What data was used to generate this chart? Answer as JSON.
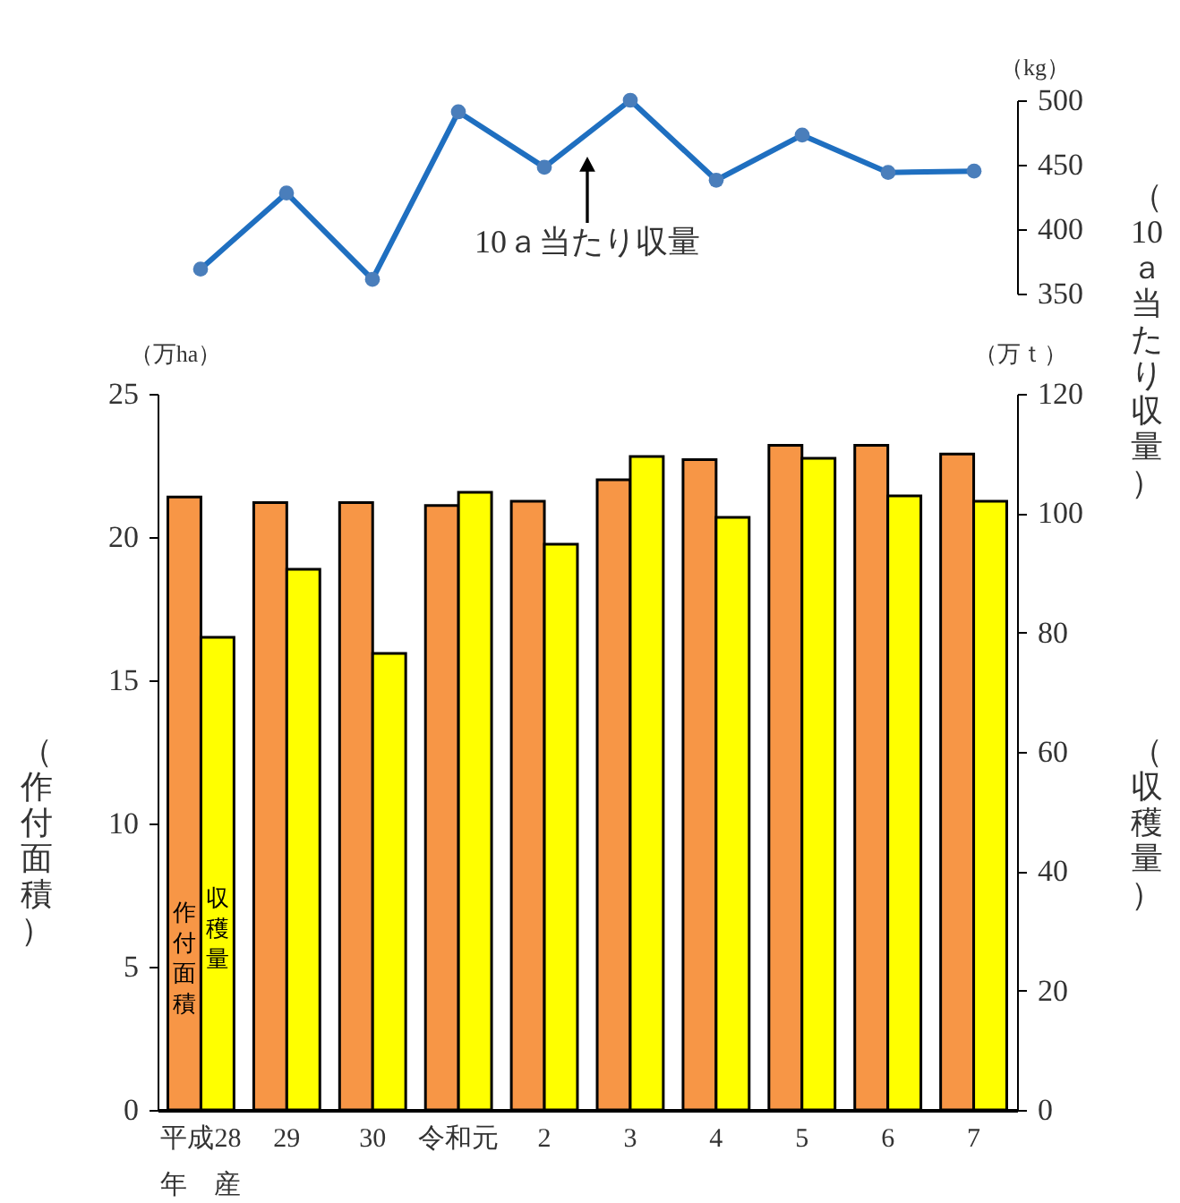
{
  "chart_data": [
    {
      "type": "line",
      "categories": [
        null,
        null,
        null,
        null,
        null,
        null,
        null,
        null,
        null,
        null
      ],
      "values": [
        369,
        428,
        361,
        491,
        448,
        500,
        438,
        473,
        444,
        445
      ],
      "color": "#1f6fc0",
      "marker": "circle",
      "ylim": [
        350,
        500
      ],
      "yticks": [
        350,
        400,
        450,
        500
      ],
      "ylabel": "（10ａ当たり収量）",
      "tick_labels": "y",
      "annotations": [
        "（kg）",
        "10ａ当たり収量"
      ]
    },
    {
      "type": "bar",
      "categories": [
        "平成28\n年　産",
        "29",
        "30",
        "令和元",
        "2",
        "3",
        "4",
        "5",
        "6",
        "7"
      ],
      "series": [
        {
          "name": "作付面積",
          "color": "#f79646",
          "values": [
            21.4,
            21.2,
            21.2,
            21.1,
            21.25,
            22.0,
            22.7,
            23.2,
            23.2,
            22.9
          ]
        },
        {
          "name": "収穫量",
          "color": "#ffff00",
          "axis": "y2",
          "values": [
            79.2,
            90.6,
            76.5,
            103.5,
            94.8,
            109.5,
            99.3,
            109.2,
            102.9,
            102.0
          ]
        }
      ],
      "ylim": [
        0,
        25
      ],
      "yticks": [
        0,
        5,
        10,
        15,
        20,
        25
      ],
      "y2lim": [
        0,
        120
      ],
      "y2ticks": [
        0,
        20,
        40,
        60,
        80,
        100,
        120
      ],
      "ylabel": "（作付面積）",
      "y2label": "（収穫量）",
      "annotations": [
        "（万ha）",
        "（万ｔ）"
      ]
    }
  ]
}
